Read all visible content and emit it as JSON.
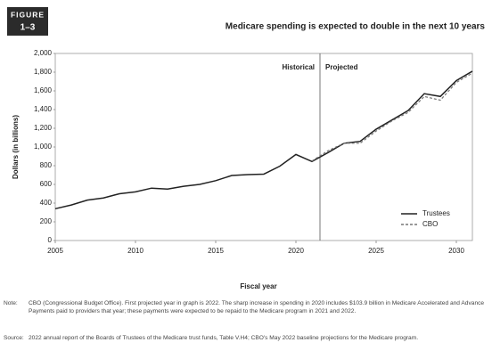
{
  "figure_label": {
    "line1": "FIGURE",
    "line2": "1–3"
  },
  "chart_data": {
    "type": "line",
    "title": "Medicare spending is expected to double in the next 10 years",
    "x_label": "Fiscal year",
    "y_label": "Dollars (in billions)",
    "x": [
      2005,
      2006,
      2007,
      2008,
      2009,
      2010,
      2011,
      2012,
      2013,
      2014,
      2015,
      2016,
      2017,
      2018,
      2019,
      2020,
      2021,
      2022,
      2023,
      2024,
      2025,
      2026,
      2027,
      2028,
      2029,
      2030,
      2031
    ],
    "series": [
      {
        "name": "Trustees",
        "color": "#222222",
        "dash": false,
        "values": [
          340,
          380,
          432,
          455,
          500,
          520,
          560,
          550,
          580,
          600,
          640,
          695,
          705,
          710,
          795,
          920,
          845,
          940,
          1040,
          1060,
          1190,
          1290,
          1390,
          1570,
          1540,
          1710,
          1810
        ]
      },
      {
        "name": "CBO",
        "color": "#777777",
        "dash": true,
        "values": [
          null,
          null,
          null,
          null,
          null,
          null,
          null,
          null,
          null,
          null,
          null,
          null,
          null,
          null,
          null,
          null,
          850,
          960,
          1040,
          1040,
          1170,
          1280,
          1370,
          1540,
          1500,
          1690,
          1790
        ]
      }
    ],
    "xlim": [
      2005,
      2031
    ],
    "xticks": [
      2005,
      2010,
      2015,
      2020,
      2025,
      2030
    ],
    "ylim": [
      0,
      2000
    ],
    "yticks": [
      0,
      200,
      400,
      600,
      800,
      {
        "value": 1000,
        "label": "1,000"
      },
      {
        "value": 1200,
        "label": "1,200"
      },
      {
        "value": 1400,
        "label": "1,400"
      },
      {
        "value": 1600,
        "label": "1,600"
      },
      {
        "value": 1800,
        "label": "1,800"
      },
      {
        "value": 2000,
        "label": "2,000"
      }
    ],
    "divider": {
      "x": 2021.5,
      "left_label": "Historical",
      "right_label": "Projected"
    },
    "legend": "lower right",
    "grid": false
  },
  "notes": [
    {
      "label": "Note:",
      "text": "CBO (Congressional Budget Office). First projected year in graph is 2022. The sharp increase in spending in 2020 includes $103.9 billion in Medicare Accelerated and Advance Payments paid to providers that year; these payments were expected to be repaid to the Medicare program in 2021 and 2022."
    },
    {
      "label": "Source:",
      "text": "2022 annual report of the Boards of Trustees of the Medicare trust funds, Table V.H4; CBO's May 2022 baseline projections for the Medicare program."
    }
  ]
}
